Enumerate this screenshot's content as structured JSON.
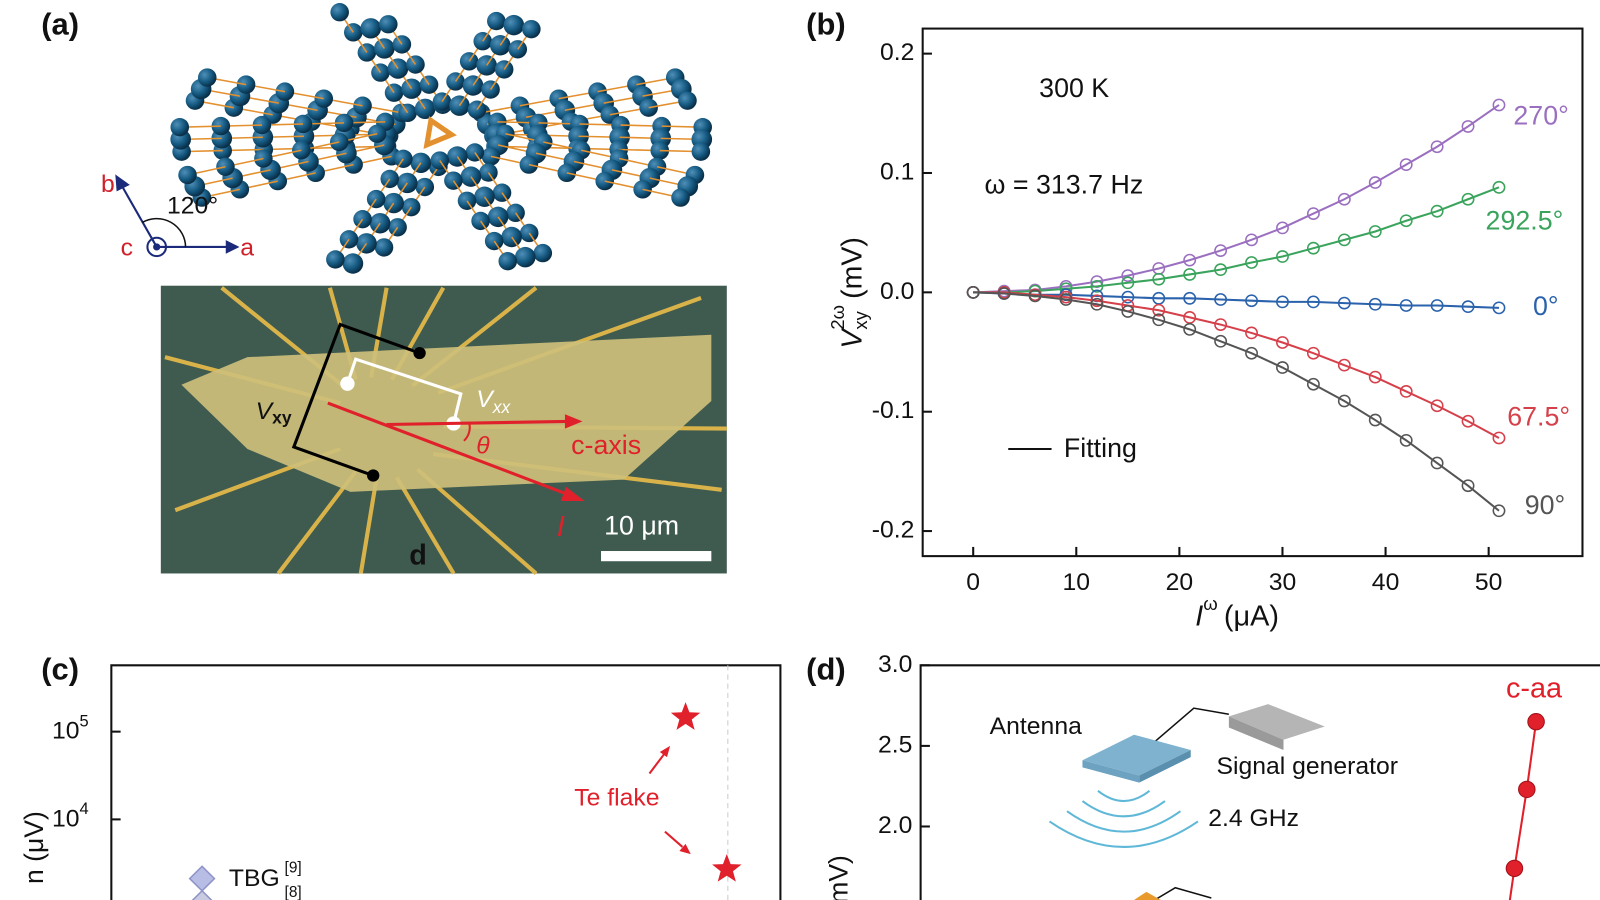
{
  "panel_a": {
    "panel_label": "(a)",
    "crystal": {
      "axis_b": "b",
      "axis_c": "c",
      "axis_a": "a",
      "angle": "120°"
    },
    "micrograph": {
      "vxy": {
        "symbol": "V",
        "sub": "xy"
      },
      "vxx": {
        "symbol": "V",
        "sub": "xx"
      },
      "theta": "θ",
      "c_axis": "c-axis",
      "current": "I",
      "scale_bar": "10 μm",
      "letter": "d"
    }
  },
  "chart_data": [
    {
      "type": "line",
      "panel_label": "(b)",
      "annotations": [
        "300 K",
        "ω = 313.7 Hz"
      ],
      "fit_label": "Fitting",
      "xlabel": {
        "symbol": "I",
        "sup": "ω",
        "unit": "(μA)"
      },
      "ylabel": {
        "symbol": "V",
        "sub": "xy",
        "sup": "2ω",
        "unit": "(mV)"
      },
      "x": [
        0,
        3,
        6,
        9,
        12,
        15,
        18,
        21,
        24,
        27,
        30,
        33,
        36,
        39,
        42,
        45,
        48,
        51
      ],
      "series": [
        {
          "name": "270°",
          "color": "#9b6fc0",
          "values": [
            0,
            0.001,
            0.002,
            0.005,
            0.009,
            0.014,
            0.02,
            0.027,
            0.035,
            0.044,
            0.054,
            0.066,
            0.078,
            0.092,
            0.107,
            0.122,
            0.139,
            0.157
          ]
        },
        {
          "name": "292.5°",
          "color": "#3aa35c",
          "values": [
            0,
            0.0,
            0.001,
            0.003,
            0.005,
            0.008,
            0.011,
            0.015,
            0.019,
            0.025,
            0.03,
            0.037,
            0.044,
            0.051,
            0.06,
            0.068,
            0.078,
            0.088
          ]
        },
        {
          "name": "0°",
          "color": "#2a62ac",
          "values": [
            0,
            -0.001,
            -0.002,
            -0.002,
            -0.003,
            -0.004,
            -0.005,
            -0.005,
            -0.006,
            -0.007,
            -0.008,
            -0.008,
            -0.009,
            -0.01,
            -0.011,
            -0.011,
            -0.012,
            -0.013
          ]
        },
        {
          "name": "67.5°",
          "color": "#d6404a",
          "values": [
            0,
            0.0,
            -0.002,
            -0.004,
            -0.007,
            -0.011,
            -0.015,
            -0.021,
            -0.027,
            -0.034,
            -0.042,
            -0.051,
            -0.061,
            -0.071,
            -0.083,
            -0.095,
            -0.108,
            -0.122
          ]
        },
        {
          "name": "90°",
          "color": "#555555",
          "values": [
            0,
            -0.001,
            -0.003,
            -0.006,
            -0.01,
            -0.016,
            -0.023,
            -0.031,
            -0.041,
            -0.051,
            -0.063,
            -0.077,
            -0.091,
            -0.107,
            -0.124,
            -0.143,
            -0.162,
            -0.183
          ]
        }
      ],
      "xlim": [
        -4.9,
        59.1
      ],
      "ylim": [
        -0.221,
        0.221
      ],
      "xticks": [
        0,
        10,
        20,
        30,
        40,
        50
      ],
      "yticks": [
        0.2,
        0.1,
        {
          "value": 0,
          "label": "0.0"
        },
        -0.1,
        -0.2
      ]
    },
    {
      "type": "scatter",
      "panel_label": "(c)",
      "ylabel": "n (μV)",
      "ylog": true,
      "ylim": [
        1000,
        570000
      ],
      "yticks": [
        {
          "value": 100000,
          "label": "10",
          "exponent": "5"
        },
        {
          "value": 10000,
          "label": "10",
          "exponent": "4"
        }
      ],
      "series": [
        {
          "name": "Te flake",
          "color": "#e0202a",
          "values": [
            145000,
            2700
          ]
        }
      ],
      "legend": [
        {
          "name": "TBG",
          "ref": "[9]",
          "color": "#b8bde6"
        },
        {
          "ref": "[8]"
        }
      ]
    },
    {
      "type": "line",
      "panel_label": "(d)",
      "ylabel": "(mV)",
      "ylim": [
        1.43,
        3.0
      ],
      "yticks": [
        {
          "value": 3,
          "label": "3.0"
        },
        2.5,
        {
          "value": 2,
          "label": "2.0"
        }
      ],
      "series": [
        {
          "name": "c-aa",
          "color": "#e0202a",
          "values": [
            2.65,
            2.23,
            1.74
          ]
        }
      ],
      "inset": {
        "antenna": "Antenna",
        "generator": "Signal generator",
        "frequency": "2.4 GHz"
      }
    }
  ]
}
